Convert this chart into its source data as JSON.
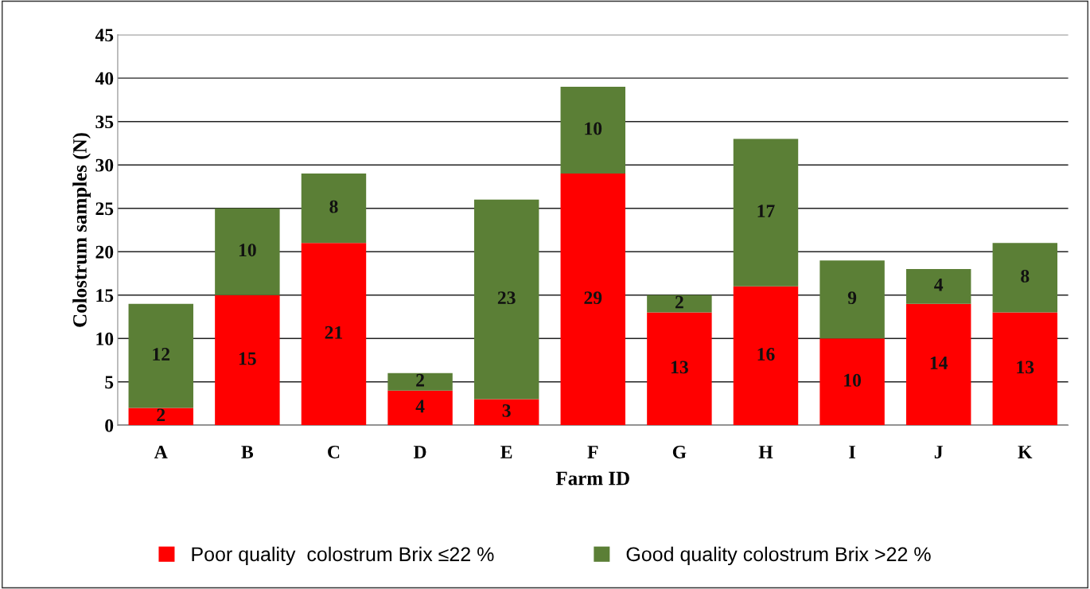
{
  "chart_data": {
    "type": "bar",
    "stacked": true,
    "xlabel": "Farm ID",
    "ylabel": "Colostrum samples (N)",
    "categories": [
      "A",
      "B",
      "C",
      "D",
      "E",
      "F",
      "G",
      "H",
      "I",
      "J",
      "K"
    ],
    "series": [
      {
        "name": "Poor quality  colostrum Brix ≤22 %",
        "color": "#ff0000",
        "values": [
          2,
          15,
          21,
          4,
          3,
          29,
          13,
          16,
          10,
          14,
          13
        ]
      },
      {
        "name": "Good quality colostrum Brix >22 %",
        "color": "#5b7f36",
        "values": [
          12,
          10,
          8,
          2,
          23,
          10,
          2,
          17,
          9,
          4,
          8
        ]
      }
    ],
    "ylim": [
      0,
      45
    ],
    "yticks": [
      0,
      5,
      10,
      15,
      20,
      25,
      30,
      35,
      40,
      45
    ],
    "grid": "y",
    "legend": "bottom",
    "data_labels": true
  }
}
